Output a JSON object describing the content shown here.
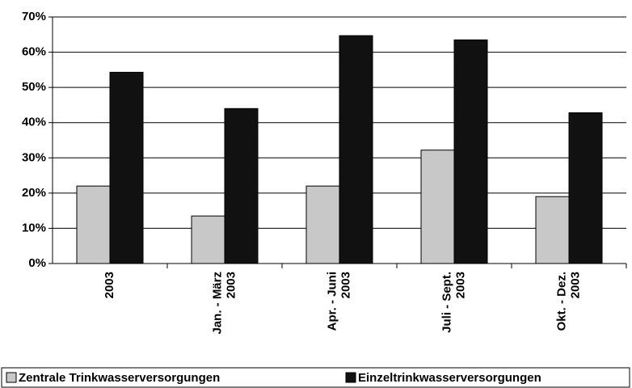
{
  "chart_data": {
    "type": "bar",
    "categories": [
      [
        "2003"
      ],
      [
        "Jan. - März",
        "2003"
      ],
      [
        "Apr. - Juni",
        "2003"
      ],
      [
        "Juli - Sept.",
        "2003"
      ],
      [
        "Okt. - Dez.",
        "2003"
      ]
    ],
    "series": [
      {
        "name": "Zentrale Trinkwasserversorgungen",
        "color": "#c8c8c8",
        "values": [
          22,
          13.5,
          22,
          32.2,
          19
        ]
      },
      {
        "name": "Einzeltrinkwasserversorgungen",
        "color": "#111111",
        "values": [
          54.3,
          44,
          64.7,
          63.5,
          42.8
        ]
      }
    ],
    "ylim": [
      0,
      70
    ],
    "yticks": [
      {
        "value": 0,
        "label": "0%"
      },
      {
        "value": 10,
        "label": "10%"
      },
      {
        "value": 20,
        "label": "20%"
      },
      {
        "value": 30,
        "label": "30%"
      },
      {
        "value": 40,
        "label": "40%"
      },
      {
        "value": 50,
        "label": "50%"
      },
      {
        "value": 60,
        "label": "60%"
      },
      {
        "value": 70,
        "label": "70%"
      }
    ],
    "grid": true,
    "legend": "bottom"
  }
}
